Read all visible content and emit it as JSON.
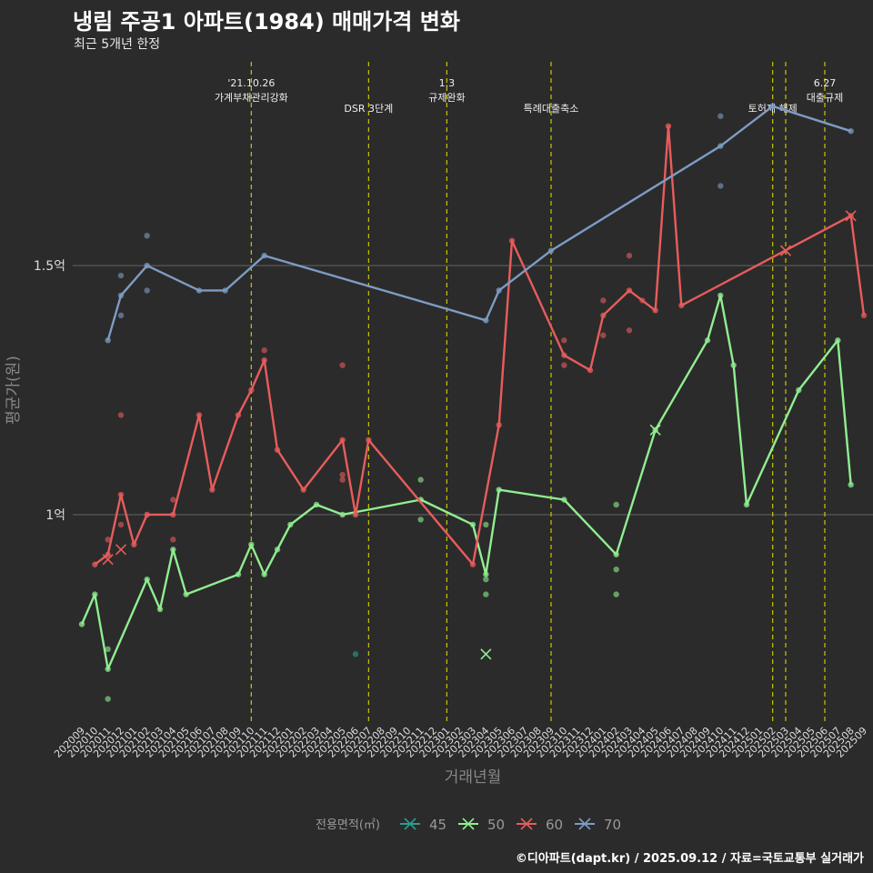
{
  "title": "냉림 주공1 아파트(1984) 매매가격 변화",
  "subtitle": "최근 5개년 한정",
  "caption": "©디아파트(dapt.kr) / 2025.09.12 / 자료=국토교통부 실거래가",
  "chart_data": {
    "type": "line",
    "xlabel": "거래년월",
    "ylabel": "평균가(원)",
    "y_unit": "억",
    "y_ticks": [
      {
        "value": 1.0,
        "label": "1억"
      },
      {
        "value": 1.5,
        "label": "1.5억"
      }
    ],
    "ylim": [
      0.58,
      1.92
    ],
    "grid": "horizontal major only",
    "x_categories": [
      "202009",
      "202010",
      "202011",
      "202012",
      "202101",
      "202102",
      "202103",
      "202104",
      "202105",
      "202106",
      "202107",
      "202108",
      "202109",
      "202110",
      "202111",
      "202112",
      "202201",
      "202202",
      "202203",
      "202204",
      "202205",
      "202206",
      "202207",
      "202208",
      "202209",
      "202210",
      "202211",
      "202212",
      "202301",
      "202302",
      "202303",
      "202304",
      "202305",
      "202306",
      "202307",
      "202308",
      "202309",
      "202310",
      "202311",
      "202312",
      "202401",
      "202402",
      "202403",
      "202404",
      "202405",
      "202406",
      "202407",
      "202408",
      "202409",
      "202410",
      "202411",
      "202412",
      "202501",
      "202502",
      "202503",
      "202504",
      "202505",
      "202506",
      "202507",
      "202508",
      "202509"
    ],
    "legend": {
      "title": "전용면적(㎡)",
      "position": "bottom"
    },
    "events": [
      {
        "x": "202110",
        "label": "'21.10.26\n가계부채관리강화"
      },
      {
        "x": "202207",
        "label": "DSR 3단계"
      },
      {
        "x": "202301",
        "label": "1.3\n규제완화"
      },
      {
        "x": "202309",
        "label": "특례대출축소"
      },
      {
        "x": "202502",
        "label": "토허제 해제"
      },
      {
        "x": "202503",
        "label": ""
      },
      {
        "x": "202506",
        "label": "6.27\n대출규제"
      }
    ],
    "series": [
      {
        "name": "45",
        "color": "#2a9d8f",
        "line": [],
        "points": [
          [
            "202206",
            0.72
          ]
        ],
        "x_marks": []
      },
      {
        "name": "50",
        "color": "#90ee90",
        "line": [
          [
            "202009",
            0.78
          ],
          [
            "202010",
            0.84
          ],
          [
            "202011",
            0.69
          ],
          [
            "202102",
            0.87
          ],
          [
            "202103",
            0.81
          ],
          [
            "202104",
            0.93
          ],
          [
            "202105",
            0.84
          ],
          [
            "202109",
            0.88
          ],
          [
            "202110",
            0.94
          ],
          [
            "202111",
            0.88
          ],
          [
            "202112",
            0.93
          ],
          [
            "202201",
            0.98
          ],
          [
            "202203",
            1.02
          ],
          [
            "202205",
            1.0
          ],
          [
            "202211",
            1.03
          ],
          [
            "202303",
            0.98
          ],
          [
            "202304",
            0.88
          ],
          [
            "202305",
            1.05
          ],
          [
            "202310",
            1.03
          ],
          [
            "202402",
            0.92
          ],
          [
            "202405",
            1.17
          ],
          [
            "202409",
            1.35
          ],
          [
            "202410",
            1.44
          ],
          [
            "202411",
            1.3
          ],
          [
            "202412",
            1.02
          ],
          [
            "202504",
            1.25
          ],
          [
            "202507",
            1.35
          ],
          [
            "202508",
            1.06
          ]
        ],
        "points": [
          [
            "202011",
            0.73
          ],
          [
            "202011",
            0.63
          ],
          [
            "202211",
            1.07
          ],
          [
            "202211",
            0.99
          ],
          [
            "202304",
            0.98
          ],
          [
            "202304",
            0.87
          ],
          [
            "202304",
            0.84
          ],
          [
            "202402",
            1.02
          ],
          [
            "202402",
            0.89
          ],
          [
            "202402",
            0.84
          ]
        ],
        "x_marks": [
          [
            "202304",
            0.72
          ],
          [
            "202405",
            1.17
          ]
        ]
      },
      {
        "name": "60",
        "color": "#e85c5c",
        "line": [
          [
            "202010",
            0.9
          ],
          [
            "202011",
            0.92
          ],
          [
            "202012",
            1.04
          ],
          [
            "202101",
            0.94
          ],
          [
            "202102",
            1.0
          ],
          [
            "202104",
            1.0
          ],
          [
            "202106",
            1.2
          ],
          [
            "202107",
            1.05
          ],
          [
            "202109",
            1.2
          ],
          [
            "202110",
            1.25
          ],
          [
            "202111",
            1.31
          ],
          [
            "202112",
            1.13
          ],
          [
            "202202",
            1.05
          ],
          [
            "202205",
            1.15
          ],
          [
            "202206",
            1.0
          ],
          [
            "202207",
            1.15
          ],
          [
            "202303",
            0.9
          ],
          [
            "202305",
            1.18
          ],
          [
            "202306",
            1.55
          ],
          [
            "202310",
            1.32
          ],
          [
            "202312",
            1.29
          ],
          [
            "202401",
            1.4
          ],
          [
            "202403",
            1.45
          ],
          [
            "202405",
            1.41
          ],
          [
            "202406",
            1.78
          ],
          [
            "202407",
            1.42
          ],
          [
            "202508",
            1.6
          ],
          [
            "202509",
            1.4
          ]
        ],
        "points": [
          [
            "202011",
            0.95
          ],
          [
            "202012",
            1.2
          ],
          [
            "202012",
            0.98
          ],
          [
            "202104",
            1.03
          ],
          [
            "202104",
            0.95
          ],
          [
            "202111",
            1.33
          ],
          [
            "202205",
            1.3
          ],
          [
            "202205",
            1.08
          ],
          [
            "202205",
            1.07
          ],
          [
            "202310",
            1.35
          ],
          [
            "202310",
            1.3
          ],
          [
            "202401",
            1.43
          ],
          [
            "202401",
            1.36
          ],
          [
            "202403",
            1.52
          ],
          [
            "202403",
            1.37
          ],
          [
            "202404",
            1.43
          ]
        ],
        "x_marks": [
          [
            "202011",
            0.91
          ],
          [
            "202012",
            0.93
          ],
          [
            "202503",
            1.53
          ],
          [
            "202508",
            1.6
          ]
        ]
      },
      {
        "name": "70",
        "color": "#7d9cc4",
        "line": [
          [
            "202011",
            1.35
          ],
          [
            "202012",
            1.44
          ],
          [
            "202102",
            1.5
          ],
          [
            "202106",
            1.45
          ],
          [
            "202108",
            1.45
          ],
          [
            "202111",
            1.52
          ],
          [
            "202304",
            1.39
          ],
          [
            "202305",
            1.45
          ],
          [
            "202309",
            1.53
          ],
          [
            "202410",
            1.74
          ],
          [
            "202502",
            1.82
          ],
          [
            "202508",
            1.77
          ]
        ],
        "points": [
          [
            "202012",
            1.48
          ],
          [
            "202012",
            1.4
          ],
          [
            "202102",
            1.56
          ],
          [
            "202102",
            1.45
          ],
          [
            "202410",
            1.8
          ],
          [
            "202410",
            1.66
          ]
        ],
        "x_marks": []
      }
    ]
  }
}
